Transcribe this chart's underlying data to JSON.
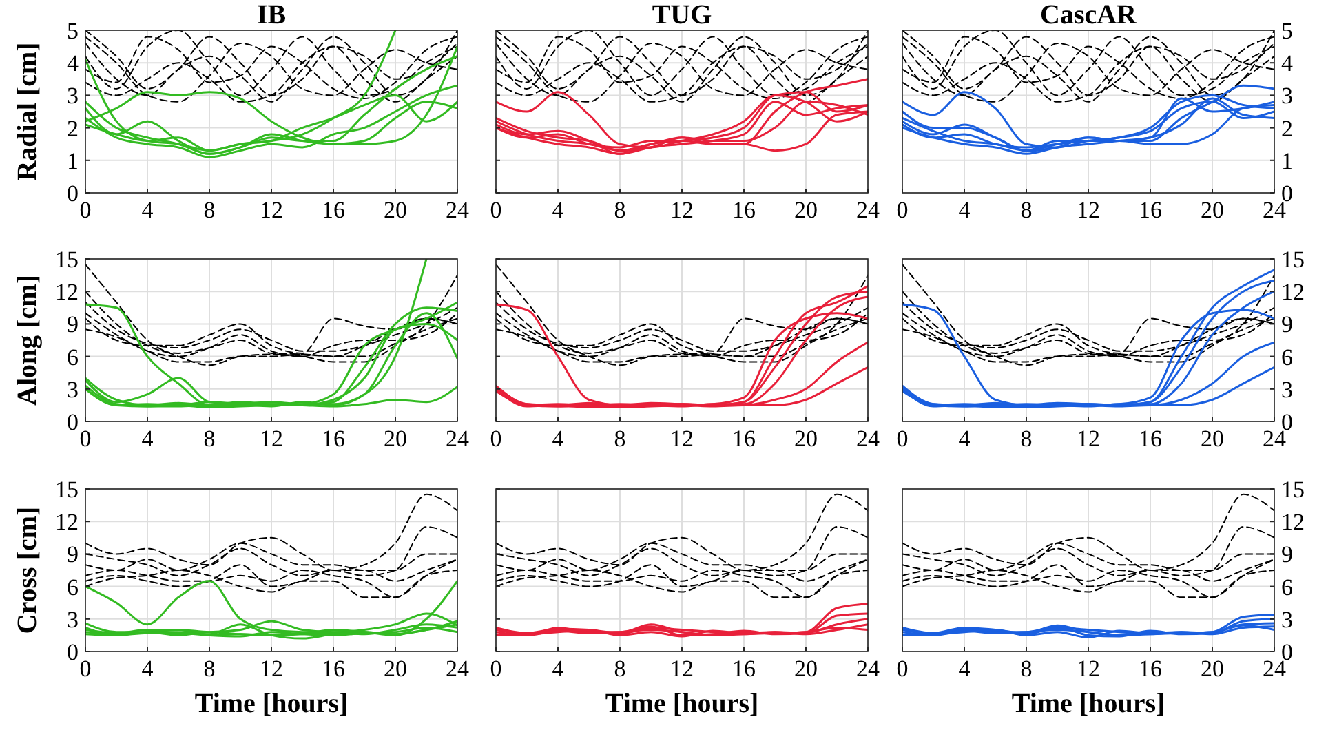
{
  "chart_data": [
    {
      "type": "line",
      "title": "IB",
      "ylabel": "Radial [cm]",
      "x": [
        0,
        2,
        4,
        6,
        8,
        10,
        12,
        14,
        16,
        18,
        20,
        22,
        24
      ],
      "xlim": [
        0,
        24
      ],
      "xticks": [
        0,
        4,
        8,
        12,
        16,
        20,
        24
      ],
      "ylim": [
        0,
        5
      ],
      "yticks": [
        0,
        1,
        2,
        3,
        4,
        5
      ],
      "grid": true,
      "line_style": "solid",
      "series": [
        {
          "color": "#000000",
          "line_style": "dashed",
          "values": [
            5,
            4.2,
            3.2,
            3.8,
            4.8,
            4,
            3,
            3.5,
            4.5,
            4.2,
            3.5,
            3.8,
            4.6
          ]
        },
        {
          "color": "#000000",
          "line_style": "dashed",
          "values": [
            4.6,
            3.5,
            3,
            3.8,
            4.2,
            3.6,
            2.8,
            3.8,
            4.8,
            4,
            3,
            3.5,
            5
          ]
        },
        {
          "color": "#000000",
          "line_style": "dashed",
          "values": [
            4.2,
            3.2,
            4.5,
            5,
            4,
            3,
            3.8,
            4.8,
            3.8,
            3,
            3.2,
            4,
            4.5
          ]
        },
        {
          "color": "#000000",
          "line_style": "dashed",
          "values": [
            3.4,
            3,
            3.5,
            4,
            3.5,
            2.8,
            3,
            4,
            4.5,
            3.5,
            2.8,
            3.5,
            4.2
          ]
        },
        {
          "color": "#000000",
          "line_style": "dashed",
          "values": [
            4.8,
            4,
            3,
            2.8,
            3.6,
            4.6,
            4.2,
            3.2,
            3,
            3.8,
            4.4,
            4,
            3.8
          ]
        },
        {
          "color": "#000000",
          "line_style": "dashed",
          "values": [
            3.8,
            3.4,
            4.8,
            4.4,
            3.4,
            3.6,
            4.5,
            4,
            3.2,
            2.9,
            3.4,
            4.4,
            4.8
          ]
        },
        {
          "color": "#33bb22",
          "values": [
            4.1,
            2.2,
            1.6,
            1.5,
            1.3,
            1.5,
            1.6,
            1.8,
            2.3,
            3,
            5,
            null,
            null
          ]
        },
        {
          "color": "#33bb22",
          "values": [
            2.8,
            2,
            1.7,
            1.5,
            1.2,
            1.4,
            1.7,
            1.6,
            1.6,
            2.4,
            3.2,
            3.8,
            4.2
          ]
        },
        {
          "color": "#33bb22",
          "values": [
            2.2,
            2.6,
            3.1,
            3,
            3.1,
            2.9,
            2.2,
            1.7,
            1.5,
            1.6,
            2.3,
            2.8,
            2.6
          ]
        },
        {
          "color": "#33bb22",
          "values": [
            2.1,
            1.8,
            1.6,
            1.7,
            1.3,
            1.5,
            1.6,
            2,
            2.3,
            2.7,
            3,
            2.2,
            2.8
          ]
        },
        {
          "color": "#33bb22",
          "values": [
            2.6,
            1.8,
            2.2,
            1.6,
            1.2,
            1.4,
            1.8,
            1.6,
            1.5,
            1.5,
            1.6,
            2.4,
            4.5
          ]
        },
        {
          "color": "#33bb22",
          "values": [
            2.3,
            1.7,
            1.5,
            1.4,
            1.1,
            1.3,
            1.5,
            1.4,
            1.8,
            2,
            2.5,
            3,
            3.3
          ]
        }
      ]
    },
    {
      "type": "line",
      "title": "TUG",
      "x": [
        0,
        2,
        4,
        6,
        8,
        10,
        12,
        14,
        16,
        18,
        20,
        22,
        24
      ],
      "xlim": [
        0,
        24
      ],
      "xticks": [
        0,
        4,
        8,
        12,
        16,
        20,
        24
      ],
      "ylim": [
        0,
        5
      ],
      "yticks": [
        0,
        1,
        2,
        3,
        4,
        5
      ],
      "tick_labels": "x",
      "grid": true,
      "line_style": "solid",
      "series": [
        {
          "color": "#000000",
          "line_style": "dashed",
          "values": [
            5,
            4.2,
            3.2,
            3.8,
            4.8,
            4,
            3,
            3.5,
            4.5,
            4.2,
            3.5,
            3.8,
            4.6
          ]
        },
        {
          "color": "#000000",
          "line_style": "dashed",
          "values": [
            4.6,
            3.5,
            3,
            3.8,
            4.2,
            3.6,
            2.8,
            3.8,
            4.8,
            4,
            3,
            3.5,
            5
          ]
        },
        {
          "color": "#000000",
          "line_style": "dashed",
          "values": [
            4.2,
            3.2,
            4.5,
            5,
            4,
            3,
            3.8,
            4.8,
            3.8,
            3,
            3.2,
            4,
            4.5
          ]
        },
        {
          "color": "#000000",
          "line_style": "dashed",
          "values": [
            3.4,
            3,
            3.5,
            4,
            3.5,
            2.8,
            3,
            4,
            4.5,
            3.5,
            2.8,
            3.5,
            4.2
          ]
        },
        {
          "color": "#000000",
          "line_style": "dashed",
          "values": [
            4.8,
            4,
            3,
            2.8,
            3.6,
            4.6,
            4.2,
            3.2,
            3,
            3.8,
            4.4,
            4,
            3.8
          ]
        },
        {
          "color": "#000000",
          "line_style": "dashed",
          "values": [
            3.8,
            3.4,
            4.8,
            4.4,
            3.4,
            3.6,
            4.5,
            4,
            3.2,
            2.9,
            3.4,
            4.4,
            4.8
          ]
        },
        {
          "color": "#e8203a",
          "values": [
            2.8,
            2.5,
            3.1,
            2.4,
            1.5,
            1.4,
            1.6,
            1.8,
            2.2,
            3,
            2.8,
            2.2,
            2.5
          ]
        },
        {
          "color": "#e8203a",
          "values": [
            2.3,
            1.9,
            1.7,
            1.6,
            1.3,
            1.5,
            1.7,
            1.5,
            1.5,
            2.5,
            3.1,
            3.3,
            3.5
          ]
        },
        {
          "color": "#e8203a",
          "values": [
            2.1,
            1.8,
            1.9,
            1.6,
            1.2,
            1.5,
            1.6,
            1.7,
            2,
            3,
            3.1,
            2.5,
            2.7
          ]
        },
        {
          "color": "#e8203a",
          "values": [
            2,
            1.7,
            1.8,
            1.5,
            1.4,
            1.6,
            1.6,
            1.5,
            1.5,
            1.3,
            1.5,
            2.4,
            2.5
          ]
        },
        {
          "color": "#e8203a",
          "values": [
            2.2,
            1.8,
            1.6,
            1.5,
            1.3,
            1.4,
            1.7,
            1.6,
            1.6,
            2,
            2.8,
            2.7,
            2.4
          ]
        },
        {
          "color": "#e8203a",
          "values": [
            2,
            1.7,
            1.5,
            1.4,
            1.2,
            1.4,
            1.5,
            1.6,
            1.8,
            2.8,
            2.4,
            2.6,
            2.7
          ]
        }
      ]
    },
    {
      "type": "line",
      "title": "CascAR",
      "x": [
        0,
        2,
        4,
        6,
        8,
        10,
        12,
        14,
        16,
        18,
        20,
        22,
        24
      ],
      "xlim": [
        0,
        24
      ],
      "xticks": [
        0,
        4,
        8,
        12,
        16,
        20,
        24
      ],
      "ylim": [
        0,
        5
      ],
      "yticks": [
        0,
        1,
        2,
        3,
        4,
        5
      ],
      "grid": true,
      "line_style": "solid",
      "series": [
        {
          "color": "#000000",
          "line_style": "dashed",
          "values": [
            5,
            4.2,
            3.2,
            3.8,
            4.8,
            4,
            3,
            3.5,
            4.5,
            4.2,
            3.5,
            3.8,
            4.6
          ]
        },
        {
          "color": "#000000",
          "line_style": "dashed",
          "values": [
            4.6,
            3.5,
            3,
            3.8,
            4.2,
            3.6,
            2.8,
            3.8,
            4.8,
            4,
            3,
            3.5,
            5
          ]
        },
        {
          "color": "#000000",
          "line_style": "dashed",
          "values": [
            4.2,
            3.2,
            4.5,
            5,
            4,
            3,
            3.8,
            4.8,
            3.8,
            3,
            3.2,
            4,
            4.5
          ]
        },
        {
          "color": "#000000",
          "line_style": "dashed",
          "values": [
            3.4,
            3,
            3.5,
            4,
            3.5,
            2.8,
            3,
            4,
            4.5,
            3.5,
            2.8,
            3.5,
            4.2
          ]
        },
        {
          "color": "#000000",
          "line_style": "dashed",
          "values": [
            4.8,
            4,
            3,
            2.8,
            3.6,
            4.6,
            4.2,
            3.2,
            3,
            3.8,
            4.4,
            4,
            3.8
          ]
        },
        {
          "color": "#000000",
          "line_style": "dashed",
          "values": [
            3.8,
            3.4,
            4.8,
            4.4,
            3.4,
            3.6,
            4.5,
            4,
            3.2,
            2.9,
            3.4,
            4.4,
            4.8
          ]
        },
        {
          "color": "#1a5fe0",
          "values": [
            2.8,
            2.4,
            3.1,
            2.6,
            1.5,
            1.4,
            1.6,
            1.7,
            2,
            2.8,
            3,
            2.7,
            2.6
          ]
        },
        {
          "color": "#1a5fe0",
          "values": [
            2.5,
            2,
            2,
            1.7,
            1.3,
            1.5,
            1.7,
            1.6,
            1.6,
            2.3,
            2.8,
            3.3,
            3.2
          ]
        },
        {
          "color": "#1a5fe0",
          "values": [
            2.2,
            1.8,
            2.1,
            1.7,
            1.3,
            1.6,
            1.6,
            1.7,
            1.9,
            2.6,
            2.8,
            2.3,
            2.5
          ]
        },
        {
          "color": "#1a5fe0",
          "values": [
            2.1,
            1.7,
            1.8,
            1.5,
            1.4,
            1.5,
            1.6,
            1.6,
            1.5,
            1.5,
            1.8,
            2.6,
            2.7
          ]
        },
        {
          "color": "#1a5fe0",
          "values": [
            2.3,
            1.9,
            1.6,
            1.5,
            1.3,
            1.4,
            1.7,
            1.6,
            1.7,
            2.1,
            2.9,
            2.4,
            2.3
          ]
        },
        {
          "color": "#1a5fe0",
          "values": [
            2,
            1.7,
            1.5,
            1.4,
            1.2,
            1.4,
            1.5,
            1.6,
            1.7,
            2.9,
            2.5,
            2.6,
            2.8
          ]
        }
      ]
    },
    {
      "type": "line",
      "ylabel": "Along [cm]",
      "x": [
        0,
        2,
        4,
        6,
        8,
        10,
        12,
        14,
        16,
        18,
        20,
        22,
        24
      ],
      "xlim": [
        0,
        24
      ],
      "xticks": [
        0,
        4,
        8,
        12,
        16,
        20,
        24
      ],
      "ylim": [
        0,
        15
      ],
      "yticks": [
        0,
        3,
        6,
        9,
        12,
        15
      ],
      "grid": true,
      "line_style": "solid",
      "series": [
        {
          "color": "#000000",
          "line_style": "dashed",
          "values": [
            14.5,
            11,
            7.5,
            6,
            5.2,
            6,
            6.2,
            6,
            5.5,
            5.5,
            7,
            9,
            13.5
          ]
        },
        {
          "color": "#000000",
          "line_style": "dashed",
          "values": [
            12,
            9,
            7,
            6.3,
            6.8,
            7.5,
            6.3,
            6.2,
            6,
            7,
            8.5,
            9.5,
            9
          ]
        },
        {
          "color": "#000000",
          "line_style": "dashed",
          "values": [
            11,
            8.5,
            7.2,
            6.8,
            7.5,
            8.5,
            7.5,
            6.5,
            6.5,
            7,
            8,
            9,
            10.5
          ]
        },
        {
          "color": "#000000",
          "line_style": "dashed",
          "values": [
            10,
            8,
            6.5,
            5.5,
            5.5,
            6,
            6,
            6.2,
            6,
            6,
            7.2,
            8.5,
            9.5
          ]
        },
        {
          "color": "#000000",
          "line_style": "dashed",
          "values": [
            9.5,
            7.5,
            7,
            7,
            8,
            9,
            7,
            6.3,
            9.5,
            8.8,
            8.5,
            9.5,
            9
          ]
        },
        {
          "color": "#000000",
          "line_style": "dashed",
          "values": [
            8.5,
            7.8,
            6.5,
            6,
            6.8,
            8,
            6.5,
            6,
            7,
            7.5,
            7.5,
            8,
            10
          ]
        },
        {
          "color": "#33bb22",
          "values": [
            10.8,
            10.5,
            6,
            3.5,
            1.5,
            1.6,
            1.8,
            1.6,
            1.6,
            2.5,
            6,
            15,
            null
          ]
        },
        {
          "color": "#33bb22",
          "values": [
            4,
            2,
            1.5,
            1.7,
            1.5,
            1.8,
            1.6,
            1.5,
            2,
            4,
            8.5,
            9,
            7.5
          ]
        },
        {
          "color": "#33bb22",
          "values": [
            3.8,
            1.8,
            2.5,
            4,
            1.8,
            1.6,
            1.8,
            1.5,
            1.8,
            5,
            9,
            10.5,
            10.2
          ]
        },
        {
          "color": "#33bb22",
          "values": [
            3,
            1.5,
            1.6,
            1.5,
            1.8,
            1.6,
            1.4,
            1.8,
            1.5,
            2.5,
            7,
            10,
            5.8
          ]
        },
        {
          "color": "#33bb22",
          "values": [
            3.3,
            1.6,
            1.4,
            1.5,
            1.3,
            1.4,
            1.5,
            1.6,
            2.5,
            7,
            8.5,
            9.5,
            11
          ]
        },
        {
          "color": "#33bb22",
          "values": [
            3,
            1.5,
            1.4,
            1.4,
            1.5,
            1.5,
            1.6,
            1.5,
            1.4,
            1.6,
            2,
            1.8,
            3.2
          ]
        }
      ]
    },
    {
      "type": "line",
      "x": [
        0,
        2,
        4,
        6,
        8,
        10,
        12,
        14,
        16,
        18,
        20,
        22,
        24
      ],
      "xlim": [
        0,
        24
      ],
      "xticks": [
        0,
        4,
        8,
        12,
        16,
        20,
        24
      ],
      "ylim": [
        0,
        15
      ],
      "yticks": [
        0,
        3,
        6,
        9,
        12,
        15
      ],
      "tick_labels": "x",
      "grid": true,
      "line_style": "solid",
      "series": [
        {
          "color": "#000000",
          "line_style": "dashed",
          "values": [
            14.5,
            11,
            7.5,
            6,
            5.2,
            6,
            6.2,
            6,
            5.5,
            5.5,
            7,
            9,
            13.5
          ]
        },
        {
          "color": "#000000",
          "line_style": "dashed",
          "values": [
            12,
            9,
            7,
            6.3,
            6.8,
            7.5,
            6.3,
            6.2,
            6,
            7,
            8.5,
            9.5,
            9
          ]
        },
        {
          "color": "#000000",
          "line_style": "dashed",
          "values": [
            11,
            8.5,
            7.2,
            6.8,
            7.5,
            8.5,
            7.5,
            6.5,
            6.5,
            7,
            8,
            9,
            10.5
          ]
        },
        {
          "color": "#000000",
          "line_style": "dashed",
          "values": [
            10,
            8,
            6.5,
            5.5,
            5.5,
            6,
            6,
            6.2,
            6,
            6,
            7.2,
            8.5,
            9.5
          ]
        },
        {
          "color": "#000000",
          "line_style": "dashed",
          "values": [
            9.5,
            7.5,
            7,
            7,
            8,
            9,
            7,
            6.3,
            9.5,
            8.8,
            8.5,
            9.5,
            9
          ]
        },
        {
          "color": "#000000",
          "line_style": "dashed",
          "values": [
            8.5,
            7.8,
            6.5,
            6,
            6.8,
            8,
            6.5,
            6,
            7,
            7.5,
            7.5,
            8,
            10
          ]
        },
        {
          "color": "#e8203a",
          "values": [
            10.8,
            10.3,
            6,
            2,
            1.5,
            1.6,
            1.6,
            1.5,
            1.8,
            6,
            10,
            11,
            12.5
          ]
        },
        {
          "color": "#e8203a",
          "values": [
            3.3,
            1.6,
            1.5,
            1.7,
            1.5,
            1.7,
            1.6,
            1.5,
            1.8,
            5,
            9,
            11.5,
            12
          ]
        },
        {
          "color": "#e8203a",
          "values": [
            3,
            1.5,
            1.6,
            1.5,
            1.6,
            1.5,
            1.4,
            1.6,
            1.6,
            3.5,
            7.5,
            10.5,
            11.5
          ]
        },
        {
          "color": "#e8203a",
          "values": [
            3.2,
            1.6,
            1.4,
            1.5,
            1.3,
            1.4,
            1.5,
            1.6,
            2.2,
            7.5,
            9.5,
            10,
            9.5
          ]
        },
        {
          "color": "#e8203a",
          "values": [
            2.8,
            1.5,
            1.4,
            1.4,
            1.5,
            1.5,
            1.6,
            1.5,
            1.5,
            2,
            3,
            5.5,
            7.3
          ]
        },
        {
          "color": "#e8203a",
          "values": [
            3,
            1.4,
            1.5,
            1.3,
            1.4,
            1.6,
            1.5,
            1.4,
            1.5,
            1.5,
            2,
            3.5,
            5
          ]
        }
      ]
    },
    {
      "type": "line",
      "x": [
        0,
        2,
        4,
        6,
        8,
        10,
        12,
        14,
        16,
        18,
        20,
        22,
        24
      ],
      "xlim": [
        0,
        24
      ],
      "xticks": [
        0,
        4,
        8,
        12,
        16,
        20,
        24
      ],
      "ylim": [
        0,
        15
      ],
      "yticks": [
        0,
        3,
        6,
        9,
        12,
        15
      ],
      "grid": true,
      "line_style": "solid",
      "series": [
        {
          "color": "#000000",
          "line_style": "dashed",
          "values": [
            14.5,
            11,
            7.5,
            6,
            5.2,
            6,
            6.2,
            6,
            5.5,
            5.5,
            7,
            9,
            13.5
          ]
        },
        {
          "color": "#000000",
          "line_style": "dashed",
          "values": [
            12,
            9,
            7,
            6.3,
            6.8,
            7.5,
            6.3,
            6.2,
            6,
            7,
            8.5,
            9.5,
            9
          ]
        },
        {
          "color": "#000000",
          "line_style": "dashed",
          "values": [
            11,
            8.5,
            7.2,
            6.8,
            7.5,
            8.5,
            7.5,
            6.5,
            6.5,
            7,
            8,
            9,
            10.5
          ]
        },
        {
          "color": "#000000",
          "line_style": "dashed",
          "values": [
            10,
            8,
            6.5,
            5.5,
            5.5,
            6,
            6,
            6.2,
            6,
            6,
            7.2,
            8.5,
            9.5
          ]
        },
        {
          "color": "#000000",
          "line_style": "dashed",
          "values": [
            9.5,
            7.5,
            7,
            7,
            8,
            9,
            7,
            6.3,
            9.5,
            8.8,
            8.5,
            9.5,
            9
          ]
        },
        {
          "color": "#000000",
          "line_style": "dashed",
          "values": [
            8.5,
            7.8,
            6.5,
            6,
            6.8,
            8,
            6.5,
            6,
            7,
            7.5,
            7.5,
            8,
            10
          ]
        },
        {
          "color": "#1a5fe0",
          "values": [
            10.8,
            10.3,
            6,
            2,
            1.5,
            1.6,
            1.6,
            1.5,
            1.8,
            6,
            10.5,
            12.5,
            14
          ]
        },
        {
          "color": "#1a5fe0",
          "values": [
            3.3,
            1.6,
            1.5,
            1.7,
            1.5,
            1.7,
            1.6,
            1.5,
            1.8,
            5,
            9.5,
            12,
            13
          ]
        },
        {
          "color": "#1a5fe0",
          "values": [
            3,
            1.5,
            1.6,
            1.5,
            1.6,
            1.5,
            1.4,
            1.6,
            1.6,
            3.5,
            8,
            10.5,
            12
          ]
        },
        {
          "color": "#1a5fe0",
          "values": [
            3.2,
            1.6,
            1.4,
            1.5,
            1.3,
            1.4,
            1.5,
            1.6,
            2.2,
            7.5,
            10,
            10.3,
            9.5
          ]
        },
        {
          "color": "#1a5fe0",
          "values": [
            2.8,
            1.5,
            1.4,
            1.4,
            1.5,
            1.5,
            1.6,
            1.5,
            1.5,
            2,
            3.5,
            6,
            7.3
          ]
        },
        {
          "color": "#1a5fe0",
          "values": [
            3,
            1.4,
            1.5,
            1.3,
            1.4,
            1.6,
            1.5,
            1.4,
            1.5,
            1.5,
            2,
            3.5,
            5
          ]
        }
      ]
    },
    {
      "type": "line",
      "ylabel": "Cross [cm]",
      "xlabel": "Time [hours]",
      "x": [
        0,
        2,
        4,
        6,
        8,
        10,
        12,
        14,
        16,
        18,
        20,
        22,
        24
      ],
      "xlim": [
        0,
        24
      ],
      "xticks": [
        0,
        4,
        8,
        12,
        16,
        20,
        24
      ],
      "ylim": [
        0,
        15
      ],
      "yticks": [
        0,
        3,
        6,
        9,
        12,
        15
      ],
      "grid": true,
      "line_style": "solid",
      "series": [
        {
          "color": "#000000",
          "line_style": "dashed",
          "values": [
            10,
            9,
            9.5,
            8.5,
            8,
            10,
            10.5,
            9,
            7.5,
            8,
            10,
            14.5,
            13
          ]
        },
        {
          "color": "#000000",
          "line_style": "dashed",
          "values": [
            9,
            8.5,
            8,
            7,
            8,
            9.5,
            8,
            7,
            7.5,
            7,
            7.5,
            11.5,
            10.5
          ]
        },
        {
          "color": "#000000",
          "line_style": "dashed",
          "values": [
            8,
            7.5,
            8.5,
            7.5,
            8.5,
            10,
            9,
            8,
            8,
            7.5,
            7.5,
            9,
            9
          ]
        },
        {
          "color": "#000000",
          "line_style": "dashed",
          "values": [
            7,
            7.5,
            7,
            6.5,
            6.5,
            7,
            6.5,
            7.5,
            7,
            6.5,
            5,
            7,
            7.5
          ]
        },
        {
          "color": "#000000",
          "line_style": "dashed",
          "values": [
            6.5,
            7,
            6.5,
            6,
            6.5,
            8,
            6,
            6.5,
            7.5,
            7.5,
            6.5,
            7.5,
            8.5
          ]
        },
        {
          "color": "#000000",
          "line_style": "dashed",
          "values": [
            6,
            6.8,
            7,
            7.5,
            7,
            6,
            5.5,
            6.5,
            6.5,
            5,
            5,
            7,
            8.5
          ]
        },
        {
          "color": "#33bb22",
          "values": [
            6,
            4.5,
            2.5,
            5,
            6.5,
            3,
            2,
            1.8,
            1.8,
            1.8,
            1.6,
            2,
            2.5
          ]
        },
        {
          "color": "#33bb22",
          "values": [
            2.6,
            1.8,
            1.8,
            2,
            1.8,
            2,
            2.8,
            2,
            1.8,
            2,
            2.5,
            3.5,
            2.4
          ]
        },
        {
          "color": "#33bb22",
          "values": [
            2,
            1.7,
            2,
            2,
            1.5,
            1.6,
            1.5,
            1.6,
            2,
            1.8,
            1.5,
            3,
            6.5
          ]
        },
        {
          "color": "#33bb22",
          "values": [
            2.2,
            1.5,
            1.8,
            1.8,
            1.6,
            2.5,
            1.5,
            1.2,
            1.6,
            1.8,
            1.6,
            2,
            2.8
          ]
        },
        {
          "color": "#33bb22",
          "values": [
            1.8,
            1.6,
            1.8,
            1.5,
            1.8,
            1.6,
            1.5,
            1.7,
            1.7,
            1.6,
            2,
            2.5,
            2.2
          ]
        },
        {
          "color": "#33bb22",
          "values": [
            1.6,
            1.5,
            1.7,
            1.7,
            1.5,
            1.4,
            1.8,
            1.6,
            1.5,
            1.7,
            1.8,
            2.2,
            1.8
          ]
        }
      ]
    },
    {
      "type": "line",
      "xlabel": "Time [hours]",
      "x": [
        0,
        2,
        4,
        6,
        8,
        10,
        12,
        14,
        16,
        18,
        20,
        22,
        24
      ],
      "xlim": [
        0,
        24
      ],
      "xticks": [
        0,
        4,
        8,
        12,
        16,
        20,
        24
      ],
      "ylim": [
        0,
        15
      ],
      "yticks": [
        0,
        3,
        6,
        9,
        12,
        15
      ],
      "tick_labels": "x",
      "grid": true,
      "line_style": "solid",
      "series": [
        {
          "color": "#000000",
          "line_style": "dashed",
          "values": [
            10,
            9,
            9.5,
            8.5,
            8,
            10,
            10.5,
            9,
            7.5,
            8,
            10,
            14.5,
            13
          ]
        },
        {
          "color": "#000000",
          "line_style": "dashed",
          "values": [
            9,
            8.5,
            8,
            7,
            8,
            9.5,
            8,
            7,
            7.5,
            7,
            7.5,
            11.5,
            10.5
          ]
        },
        {
          "color": "#000000",
          "line_style": "dashed",
          "values": [
            8,
            7.5,
            8.5,
            7.5,
            8.5,
            10,
            9,
            8,
            8,
            7.5,
            7.5,
            9,
            9
          ]
        },
        {
          "color": "#000000",
          "line_style": "dashed",
          "values": [
            7,
            7.5,
            7,
            6.5,
            6.5,
            7,
            6.5,
            7.5,
            7,
            6.5,
            5,
            7,
            7.5
          ]
        },
        {
          "color": "#000000",
          "line_style": "dashed",
          "values": [
            6.5,
            7,
            6.5,
            6,
            6.5,
            8,
            6,
            6.5,
            7.5,
            7.5,
            6.5,
            7.5,
            8.5
          ]
        },
        {
          "color": "#000000",
          "line_style": "dashed",
          "values": [
            6,
            6.8,
            7,
            7.5,
            7,
            6,
            5.5,
            6.5,
            6.5,
            5,
            5,
            7,
            8.5
          ]
        },
        {
          "color": "#e8203a",
          "values": [
            2.2,
            1.7,
            2.1,
            2,
            1.7,
            2.5,
            1.8,
            1.5,
            1.8,
            1.7,
            1.8,
            4,
            4.4
          ]
        },
        {
          "color": "#e8203a",
          "values": [
            2,
            1.6,
            2,
            1.9,
            1.6,
            2.2,
            2,
            1.8,
            1.6,
            1.8,
            1.7,
            3.3,
            3.5
          ]
        },
        {
          "color": "#e8203a",
          "values": [
            1.8,
            1.5,
            2.2,
            1.8,
            1.8,
            2.3,
            1.5,
            1.6,
            1.9,
            1.6,
            1.7,
            2.5,
            3
          ]
        },
        {
          "color": "#e8203a",
          "values": [
            2.1,
            1.6,
            1.8,
            2,
            1.5,
            1.8,
            1.4,
            1.9,
            1.7,
            1.8,
            1.6,
            2,
            2.5
          ]
        },
        {
          "color": "#e8203a",
          "values": [
            1.5,
            1.5,
            1.9,
            1.7,
            1.8,
            2,
            1.8,
            1.5,
            1.6,
            1.7,
            1.8,
            2.2,
            2
          ]
        }
      ]
    },
    {
      "type": "line",
      "xlabel": "Time [hours]",
      "x": [
        0,
        2,
        4,
        6,
        8,
        10,
        12,
        14,
        16,
        18,
        20,
        22,
        24
      ],
      "xlim": [
        0,
        24
      ],
      "xticks": [
        0,
        4,
        8,
        12,
        16,
        20,
        24
      ],
      "ylim": [
        0,
        15
      ],
      "yticks": [
        0,
        3,
        6,
        9,
        12,
        15
      ],
      "grid": true,
      "line_style": "solid",
      "series": [
        {
          "color": "#000000",
          "line_style": "dashed",
          "values": [
            10,
            9,
            9.5,
            8.5,
            8,
            10,
            10.5,
            9,
            7.5,
            8,
            10,
            14.5,
            13
          ]
        },
        {
          "color": "#000000",
          "line_style": "dashed",
          "values": [
            9,
            8.5,
            8,
            7,
            8,
            9.5,
            8,
            7,
            7.5,
            7,
            7.5,
            11.5,
            10.5
          ]
        },
        {
          "color": "#000000",
          "line_style": "dashed",
          "values": [
            8,
            7.5,
            8.5,
            7.5,
            8.5,
            10,
            9,
            8,
            8,
            7.5,
            7.5,
            9,
            9
          ]
        },
        {
          "color": "#000000",
          "line_style": "dashed",
          "values": [
            7,
            7.5,
            7,
            6.5,
            6.5,
            7,
            6.5,
            7.5,
            7,
            6.5,
            5,
            7,
            7.5
          ]
        },
        {
          "color": "#000000",
          "line_style": "dashed",
          "values": [
            6.5,
            7,
            6.5,
            6,
            6.5,
            8,
            6,
            6.5,
            7.5,
            7.5,
            6.5,
            7.5,
            8.5
          ]
        },
        {
          "color": "#000000",
          "line_style": "dashed",
          "values": [
            6,
            6.8,
            7,
            7.5,
            7,
            6,
            5.5,
            6.5,
            6.5,
            5,
            5,
            7,
            8.5
          ]
        },
        {
          "color": "#1a5fe0",
          "values": [
            2.2,
            1.7,
            2.2,
            2,
            1.7,
            2.4,
            1.8,
            1.5,
            1.8,
            1.7,
            1.8,
            3.2,
            3.4
          ]
        },
        {
          "color": "#1a5fe0",
          "values": [
            2,
            1.6,
            2,
            1.9,
            1.6,
            2.2,
            2,
            1.8,
            1.6,
            1.8,
            1.7,
            2.8,
            3
          ]
        },
        {
          "color": "#1a5fe0",
          "values": [
            1.8,
            1.5,
            2.2,
            1.8,
            1.8,
            2.3,
            1.5,
            1.4,
            1.9,
            1.6,
            1.7,
            2.5,
            2.6
          ]
        },
        {
          "color": "#1a5fe0",
          "values": [
            2.1,
            1.6,
            1.8,
            2,
            1.5,
            1.8,
            1.3,
            1.9,
            1.7,
            1.8,
            1.6,
            2.2,
            2.3
          ]
        },
        {
          "color": "#1a5fe0",
          "values": [
            1.5,
            1.5,
            1.9,
            1.7,
            1.8,
            2,
            1.8,
            1.5,
            1.6,
            1.7,
            1.8,
            2.4,
            2
          ]
        }
      ]
    }
  ]
}
